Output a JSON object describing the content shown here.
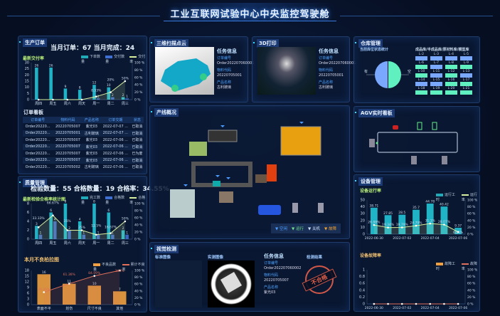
{
  "title": "工业互联网试验中心中央监控驾驶舱",
  "colors": {
    "accent": "#3d8bff",
    "bar_cyan": "#22c3d6",
    "bar_blue": "#3f6fd0",
    "line": "#d8f0a0",
    "orange": "#f0a040",
    "green": "#60f0c0",
    "warehouse_blue": "#7aa8ff",
    "defect_red": "#e0604a"
  },
  "orders": {
    "title": "生产订单",
    "summary": "当月订单：67  当月完成：24",
    "chart_title": "最新交付率",
    "legend": [
      "下单数量",
      "交付数量",
      "交付率"
    ],
    "board_title": "订单看板",
    "columns": [
      "订单编号",
      "物料代码",
      "产品名称",
      "订单交期",
      "状态"
    ],
    "rows": [
      [
        "Order20220...",
        "20220705007",
        "紫光03",
        "2022-07-07 ...",
        "已取消"
      ],
      [
        "Order20220...",
        "20220705001",
        "古利玻璃",
        "2022-07-07 ...",
        "已取消"
      ],
      [
        "Order20220...",
        "20220705007",
        "紫光03",
        "2022-07-06 ...",
        "已取消"
      ],
      [
        "Order20220...",
        "20220705007",
        "紫光03",
        "2022-07-06 ...",
        "已取消"
      ],
      [
        "Order20220...",
        "20220705007",
        "紫光03",
        "2022-07-06 ...",
        "已为废"
      ],
      [
        "Order20220...",
        "20220705007",
        "紫光03",
        "2022-07-06 ...",
        "已取消"
      ],
      [
        "Order20220...",
        "20220705002",
        "古利玻璃",
        "2022-07-06 ...",
        "已取消"
      ]
    ]
  },
  "quality": {
    "title": "质量管理",
    "summary": "检验数量：55  合格数量：19  合格率：34.55%",
    "chart_title": "最新检验合格率统计图",
    "legend": [
      "完工数量",
      "合格数量",
      "合格率"
    ],
    "pareto_title": "本月不良柏拉图",
    "pareto_legend": [
      "不良品数量",
      "累计不良率"
    ]
  },
  "scan": {
    "title": "三维扫描点云",
    "info_title": "任务信息",
    "fields": [
      {
        "k": "订单编号",
        "v": "Order202207060001"
      },
      {
        "k": "物料代码",
        "v": "20220705001"
      },
      {
        "k": "产品名称",
        "v": "古利玻璃"
      }
    ]
  },
  "print3d": {
    "title": "3D打印",
    "info_title": "任务信息",
    "fields": [
      {
        "k": "订单编号",
        "v": "Order202207060001"
      },
      {
        "k": "物料代码",
        "v": "20220705001"
      },
      {
        "k": "产品名称",
        "v": "古利玻璃"
      }
    ]
  },
  "line": {
    "title": "产线概况",
    "legend": [
      "空闲",
      "运行",
      "关机",
      "故障"
    ],
    "legend_colors": [
      "#4a9cff",
      "#6ee08a",
      "#cfe0ff",
      "#f0a030"
    ]
  },
  "vision": {
    "title": "视觉检测",
    "std_label": "标准图像",
    "live_label": "实测图像",
    "info_title": "任务信息",
    "result_label": "检测结果",
    "stamp": "不合格",
    "fields": [
      {
        "k": "订单编号",
        "v": "Order202207060002"
      },
      {
        "k": "物料代码",
        "v": "20220705007"
      },
      {
        "k": "产品名称",
        "v": "紫光03"
      }
    ]
  },
  "warehouse": {
    "title": "仓库管理",
    "stat_label": "当前库位状态统计",
    "pie_labels": [
      "有",
      "空"
    ],
    "pie_values": [
      50,
      50
    ],
    "legend": "成品库/半成品库/原材料库/模型库",
    "slots": [
      {
        "id": "L-2",
        "s": "b"
      },
      {
        "id": "L-3",
        "s": "b"
      },
      {
        "id": "L-4",
        "s": "b"
      },
      {
        "id": "L-5",
        "s": "b"
      },
      {
        "id": "L-6",
        "s": "g"
      },
      {
        "id": "L-7",
        "s": "b"
      },
      {
        "id": "L-8",
        "s": "g"
      },
      {
        "id": "L-9",
        "s": "g"
      },
      {
        "id": "L-10",
        "s": "g"
      },
      {
        "id": "L-11",
        "s": "b"
      },
      {
        "id": "L-12",
        "s": "g"
      },
      {
        "id": "L-13",
        "s": "b"
      },
      {
        "id": "L-14",
        "s": "b"
      },
      {
        "id": "L-15",
        "s": "b"
      },
      {
        "id": "L-16",
        "s": "g"
      },
      {
        "id": "L-17",
        "s": "g"
      },
      {
        "id": "L-18",
        "s": "g"
      },
      {
        "id": "L-19",
        "s": "g"
      },
      {
        "id": "L-20",
        "s": "g"
      },
      {
        "id": "L-21",
        "s": "g"
      }
    ]
  },
  "agv": {
    "title": "AGV实时看板"
  },
  "equipment": {
    "title": "设备管理",
    "run_title": "设备运行率",
    "run_legend": [
      "运行工时",
      "运行率"
    ],
    "fault_title": "设备故障率",
    "fault_legend": [
      "故障工时",
      "故障率"
    ]
  },
  "chart_data": [
    {
      "id": "orders",
      "type": "bar",
      "categories": [
        "周四",
        "周五",
        "周六",
        "周天",
        "周一",
        "周二",
        "周三"
      ],
      "series": [
        {
          "name": "下单数量",
          "values": [
            26,
            26,
            9,
            8,
            12,
            10,
            2
          ]
        },
        {
          "name": "交付数量",
          "values": [
            0,
            0,
            0,
            0,
            1,
            2,
            1
          ]
        },
        {
          "name": "交付率",
          "axis": "right",
          "values": [
            0,
            0,
            0,
            0,
            8.33,
            20,
            50
          ]
        }
      ],
      "ylim": [
        0,
        30
      ],
      "yticks": [
        0,
        5,
        10,
        15,
        20,
        25,
        30
      ],
      "y2lim": [
        0,
        100
      ]
    },
    {
      "id": "quality",
      "type": "bar",
      "categories": [
        "周四",
        "周五",
        "周六",
        "周天",
        "周一",
        "周二",
        "周三"
      ],
      "series": [
        {
          "name": "完工数量",
          "values": [
            3,
            6,
            8,
            4,
            8,
            6,
            2
          ]
        },
        {
          "name": "合格数量",
          "values": [
            1,
            4,
            2,
            1,
            1,
            1,
            1
          ]
        },
        {
          "name": "合格率",
          "axis": "right",
          "values": [
            33.33,
            66.67,
            25,
            25,
            12.5,
            16.67,
            50
          ]
        }
      ],
      "ylim": [
        0,
        8
      ],
      "yticks": [
        0,
        2,
        4,
        6,
        8
      ],
      "y2lim": [
        0,
        100
      ]
    },
    {
      "id": "pareto",
      "type": "bar",
      "categories": [
        "表面不平",
        "划伤",
        "尺寸不良",
        "其他"
      ],
      "series": [
        {
          "name": "不良品数量",
          "values": [
            16,
            11,
            10,
            7
          ]
        },
        {
          "name": "累计不良率",
          "axis": "right",
          "values": [
            36.36,
            61.36,
            84.09,
            100
          ]
        }
      ],
      "ylim": [
        0,
        18
      ],
      "yticks": [
        0,
        3,
        6,
        9,
        12,
        15,
        18
      ],
      "y2lim": [
        0,
        100
      ]
    },
    {
      "id": "run",
      "type": "bar",
      "categories": [
        "2022-06-30",
        "2022-07-01",
        "2022-07-02",
        "2022-07-03",
        "2022-07-04",
        "2022-07-05",
        "2022-07-06"
      ],
      "xtick_labels": [
        "2022-06-30",
        "",
        "2022-07-02",
        "",
        "2022-07-04",
        "",
        "2022-07-06"
      ],
      "series": [
        {
          "name": "运行工时",
          "values": [
            38.71,
            27.85,
            28.5,
            35.7,
            44.78,
            40.42,
            9.37
          ]
        },
        {
          "name": "运行率",
          "axis": "right",
          "values": [
            26.88,
            19.34,
            19.79,
            24.79,
            31.1,
            28.07,
            6.51
          ]
        }
      ],
      "ylim": [
        0,
        50
      ],
      "yticks": [
        0,
        10,
        20,
        30,
        40,
        50
      ],
      "y2lim": [
        0,
        100
      ]
    },
    {
      "id": "fault",
      "type": "bar",
      "categories": [
        "2022-06-30",
        "2022-07-01",
        "2022-07-02",
        "2022-07-03",
        "2022-07-04",
        "2022-07-05",
        "2022-07-06"
      ],
      "xtick_labels": [
        "2022-06-30",
        "",
        "2022-07-02",
        "",
        "2022-07-04",
        "",
        "2022-07-06"
      ],
      "series": [
        {
          "name": "故障工时",
          "values": [
            0,
            0,
            0,
            0,
            0,
            0,
            0
          ]
        },
        {
          "name": "故障率",
          "axis": "right",
          "values": [
            0,
            0,
            0,
            0,
            0,
            0,
            0
          ]
        }
      ],
      "ylim": [
        0,
        1
      ],
      "yticks": [
        0,
        0.2,
        0.4,
        0.6,
        0.8,
        1
      ],
      "y2lim": [
        0,
        100
      ]
    }
  ]
}
